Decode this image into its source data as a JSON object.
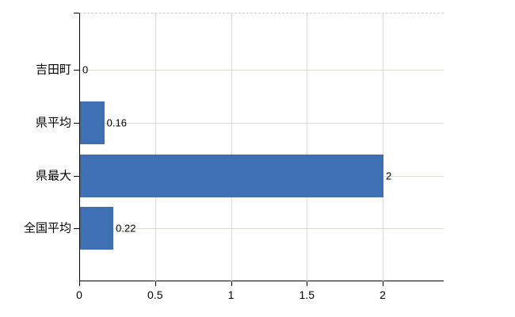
{
  "chart_data": {
    "type": "bar",
    "orientation": "horizontal",
    "title": "",
    "categories": [
      "吉田町",
      "県平均",
      "県最大",
      "全国平均"
    ],
    "values": [
      0,
      0.16,
      2,
      0.22
    ],
    "value_labels": [
      "0",
      "0.16",
      "2",
      "0.22"
    ],
    "x_ticks": [
      0,
      0.5,
      1,
      1.5,
      2
    ],
    "x_tick_labels": [
      "0",
      "0.5",
      "1",
      "1.5",
      "2"
    ],
    "xlim": [
      0,
      2.4
    ],
    "grid": true,
    "legend": false,
    "colors": {
      "bar": "#3e6fb2",
      "gridline_h": "#d7ddd3",
      "gridline_v": "#d9d9d9",
      "axis": "#000000",
      "top_border": "#c9c9c9",
      "text": "#000000",
      "background": "#ffffff"
    }
  }
}
